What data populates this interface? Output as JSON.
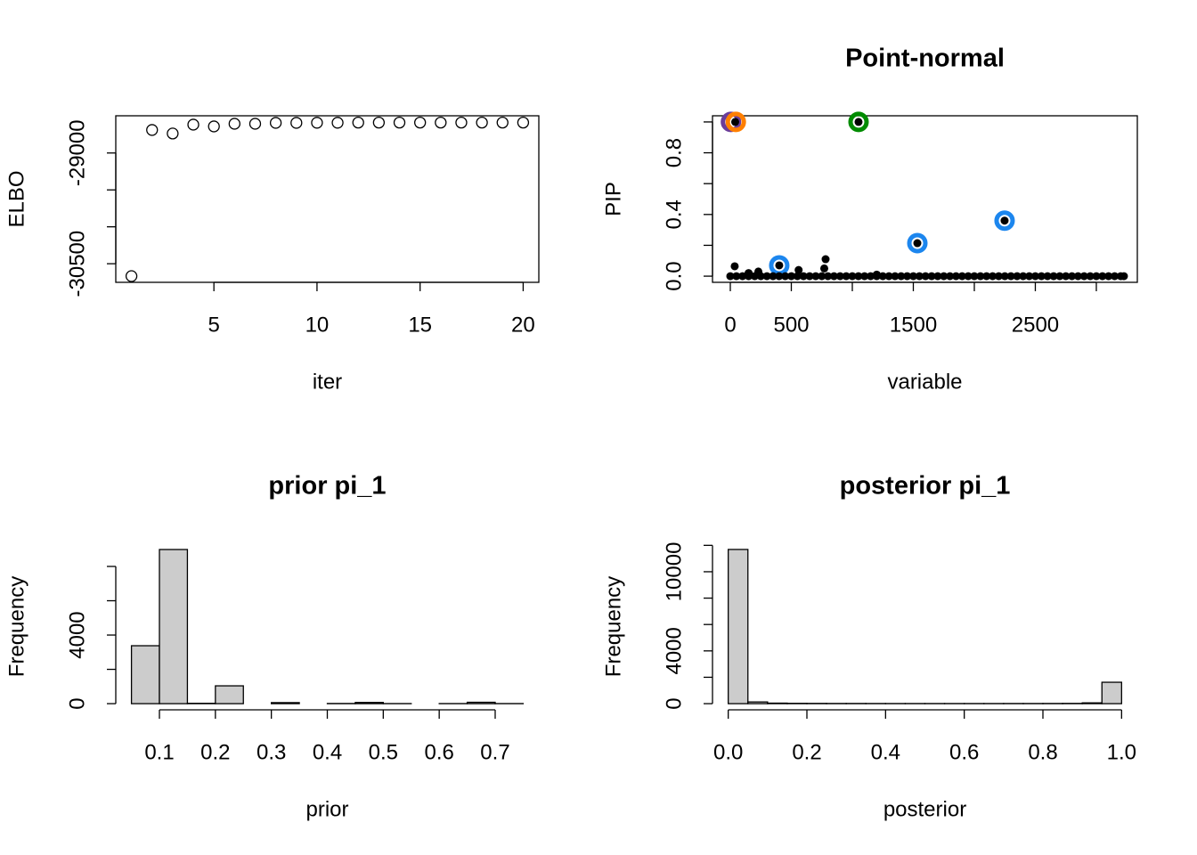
{
  "chart_data": [
    {
      "type": "scatter",
      "xlabel": "iter",
      "ylabel": "ELBO",
      "marker": "open",
      "color": "#000000",
      "x": [
        1,
        2,
        3,
        4,
        5,
        6,
        7,
        8,
        9,
        10,
        11,
        12,
        13,
        14,
        15,
        16,
        17,
        18,
        19,
        20
      ],
      "values": [
        -30668,
        -28688,
        -28736,
        -28616,
        -28640,
        -28604,
        -28604,
        -28592,
        -28592,
        -28590,
        -28590,
        -28588,
        -28588,
        -28588,
        -28588,
        -28588,
        -28588,
        -28588,
        -28588,
        -28588
      ],
      "xlim": [
        0.24,
        20.76
      ],
      "xticks": [
        5,
        10,
        15,
        20
      ],
      "ylim": [
        -30752,
        -28496
      ],
      "yticks": [
        -30500,
        -29000
      ],
      "yminorticks": [
        -30000,
        -29500
      ],
      "box": true
    },
    {
      "type": "scatter",
      "title": "Point-normal",
      "xlabel": "variable",
      "ylabel": "PIP",
      "series": [
        {
          "color": "#6A3D9A",
          "marker": "ring",
          "x": [
            5
          ],
          "values": [
            1.0
          ]
        },
        {
          "color": "#FF7F00",
          "marker": "ring",
          "x": [
            45
          ],
          "values": [
            1.0
          ]
        },
        {
          "color": "#008B00",
          "marker": "ring",
          "x": [
            1051
          ],
          "values": [
            1.0
          ]
        },
        {
          "color": "#1C86EE",
          "marker": "ring",
          "x": [
            401,
            1533,
            2248
          ],
          "values": [
            0.07,
            0.214,
            0.36
          ]
        },
        {
          "color": "#000000",
          "marker": "dot",
          "x": [
            40,
            36,
            150,
            230,
            401,
            560,
            781,
            770,
            1200,
            1051,
            1533,
            2248,
            0,
            50,
            100,
            150,
            200,
            250,
            300,
            350,
            400,
            450,
            500,
            550,
            600,
            650,
            700,
            750,
            800,
            850,
            900,
            950,
            1000,
            1050,
            1100,
            1150,
            1200,
            1250,
            1300,
            1350,
            1400,
            1450,
            1500,
            1550,
            1600,
            1650,
            1700,
            1750,
            1800,
            1850,
            1900,
            1950,
            2000,
            2050,
            2100,
            2150,
            2200,
            2250,
            2300,
            2350,
            2400,
            2450,
            2500,
            2550,
            2600,
            2650,
            2700,
            2750,
            2800,
            2850,
            2900,
            2950,
            3000,
            3050,
            3100,
            3150,
            3200,
            3226
          ],
          "values": [
            1.0,
            0.064,
            0.02,
            0.03,
            0.07,
            0.04,
            0.11,
            0.05,
            0.01,
            1.0,
            0.214,
            0.36,
            0,
            0,
            0,
            0,
            0,
            0,
            0,
            0,
            0,
            0,
            0,
            0,
            0,
            0,
            0,
            0,
            0,
            0,
            0,
            0,
            0,
            0,
            0,
            0,
            0,
            0,
            0,
            0,
            0,
            0,
            0,
            0,
            0,
            0,
            0,
            0,
            0,
            0,
            0,
            0,
            0,
            0,
            0,
            0,
            0,
            0,
            0,
            0,
            0,
            0,
            0,
            0,
            0,
            0,
            0,
            0,
            0,
            0,
            0,
            0,
            0,
            0,
            0,
            0,
            0,
            0
          ]
        }
      ],
      "xlim": [
        -146,
        3336
      ],
      "xticks": [
        0,
        500,
        1500,
        2500
      ],
      "xminorticks": [
        1000,
        2000,
        3000
      ],
      "ylim": [
        -0.04,
        1.04
      ],
      "yticks": [
        {
          "value": 0,
          "label": "0.0"
        },
        0.4,
        0.8
      ],
      "yminorticks": [
        0.2,
        0.6,
        1.0
      ],
      "box": true
    },
    {
      "type": "histogram",
      "title": "prior pi_1",
      "xlabel": "prior",
      "ylabel": "Frequency",
      "color": "#cccccc",
      "bins": [
        0.05,
        0.1,
        0.15,
        0.2,
        0.25,
        0.3,
        0.35,
        0.4,
        0.45,
        0.5,
        0.55,
        0.6,
        0.65,
        0.7,
        0.75
      ],
      "values": [
        3377,
        8987,
        20,
        1039,
        0,
        60,
        0,
        10,
        70,
        5,
        0,
        5,
        80,
        5
      ],
      "xlim": [
        0.022,
        0.778
      ],
      "xticks": [
        0.1,
        0.2,
        0.3,
        0.4,
        0.5,
        0.6,
        0.7
      ],
      "ylim": [
        -360,
        9350
      ],
      "yticks": [
        0,
        4000
      ],
      "yminorticks": [
        2000,
        6000,
        8000
      ]
    },
    {
      "type": "histogram",
      "title": "posterior pi_1",
      "xlabel": "posterior",
      "ylabel": "Frequency",
      "color": "#cccccc",
      "bins": [
        0,
        0.05,
        0.1,
        0.15,
        0.2,
        0.25,
        0.3,
        0.35,
        0.4,
        0.45,
        0.5,
        0.55,
        0.6,
        0.65,
        0.7,
        0.75,
        0.8,
        0.85,
        0.9,
        0.95,
        1.0
      ],
      "values": [
        11689,
        130,
        40,
        25,
        20,
        15,
        15,
        12,
        10,
        10,
        10,
        10,
        10,
        10,
        12,
        12,
        15,
        20,
        60,
        1622
      ],
      "xlim": [
        -0.04,
        1.04
      ],
      "xticks": [
        {
          "value": 0,
          "label": "0.0"
        },
        0.2,
        0.4,
        0.6,
        0.8,
        {
          "value": 1,
          "label": "1.0"
        }
      ],
      "ylim": [
        -468,
        12157
      ],
      "yticks": [
        0,
        4000,
        10000
      ],
      "yminorticks": [
        2000,
        6000,
        8000,
        12000
      ]
    }
  ]
}
